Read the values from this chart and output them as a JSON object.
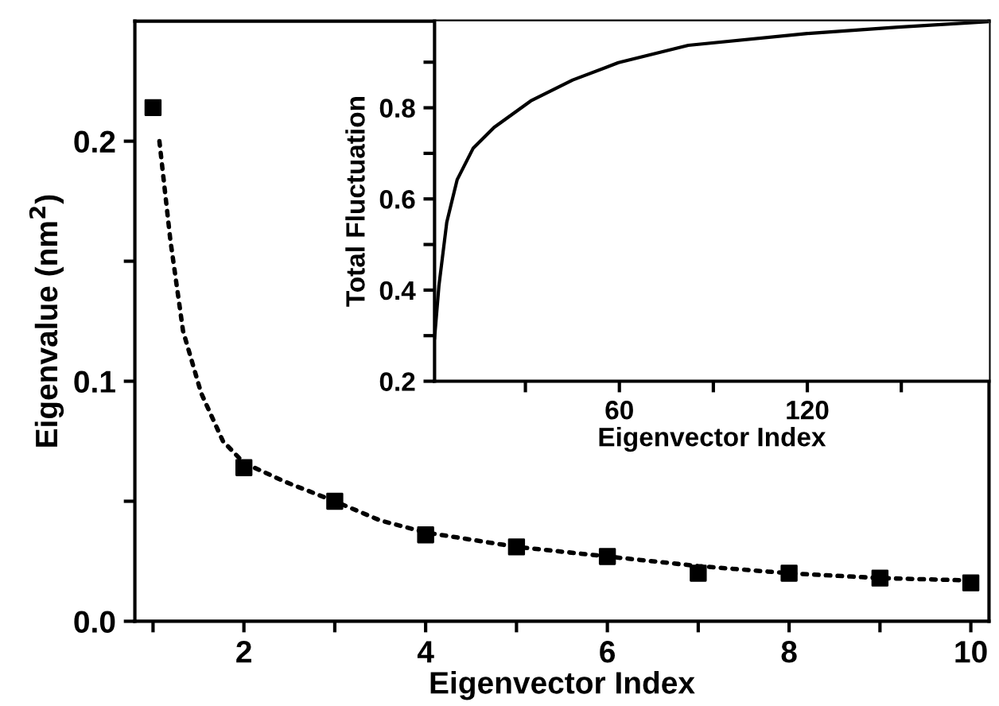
{
  "chart_data": [
    {
      "type": "scatter",
      "xlabel": "Eigenvector Index",
      "ylabel": "Eigenvalue (nm$^{2}$)",
      "marker": "square",
      "grid": false,
      "legend": false,
      "xlim": [
        0.8,
        10.2
      ],
      "ylim": [
        0,
        0.25
      ],
      "xticks": [
        {
          "value": 1,
          "label": null
        },
        2,
        {
          "value": 3,
          "label": null
        },
        4,
        {
          "value": 5,
          "label": null
        },
        6,
        {
          "value": 7,
          "label": null
        },
        8,
        {
          "value": 9,
          "label": null
        },
        10
      ],
      "yticks": [
        {
          "value": 0,
          "label": "0.0"
        },
        {
          "value": 0.05,
          "label": null
        },
        0.1,
        {
          "value": 0.15,
          "label": null
        },
        0.2
      ],
      "series": [
        {
          "type": "scatter",
          "color": "#000000",
          "x": [
            1,
            2,
            3,
            4,
            5,
            6,
            7,
            8,
            9,
            10
          ],
          "values": [
            0.214,
            0.064,
            0.05,
            0.036,
            0.031,
            0.027,
            0.02,
            0.02,
            0.018,
            0.016
          ]
        },
        {
          "type": "line",
          "line_style": "dotted",
          "marker": "none",
          "color": "#000000",
          "x": [
            1.07,
            1.19,
            1.33,
            1.53,
            1.77,
            2,
            2.46,
            3,
            3.5,
            4,
            5,
            6,
            7,
            8,
            9,
            10
          ],
          "values": [
            0.2,
            0.159,
            0.121,
            0.095,
            0.075,
            0.066,
            0.058,
            0.05,
            0.042,
            0.037,
            0.031,
            0.027,
            0.023,
            0.02,
            0.018,
            0.017
          ]
        }
      ]
    },
    {
      "type": "line",
      "xlabel": "Eigenvector Index",
      "ylabel": "Total Fluctuation",
      "grid": false,
      "legend": false,
      "line_style": "solid",
      "xlim": [
        1,
        178
      ],
      "ylim": [
        0.2,
        0.99
      ],
      "xticks": [
        {
          "value": 30,
          "label": null
        },
        60,
        {
          "value": 90,
          "label": null
        },
        120,
        {
          "value": 150,
          "label": null
        }
      ],
      "yticks": [
        0.2,
        {
          "value": 0.3,
          "label": null
        },
        0.4,
        {
          "value": 0.5,
          "label": null
        },
        0.6,
        {
          "value": 0.7,
          "label": null
        },
        0.8,
        {
          "value": 0.9,
          "label": null
        }
      ],
      "series": [
        {
          "color": "#000000",
          "x": [
            1,
            2.4,
            4.9,
            8.2,
            13.3,
            20,
            31.7,
            45.1,
            59.7,
            82,
            120,
            149,
            178
          ],
          "values": [
            0.295,
            0.41,
            0.549,
            0.642,
            0.711,
            0.757,
            0.815,
            0.861,
            0.899,
            0.937,
            0.963,
            0.977,
            0.989
          ]
        }
      ]
    }
  ]
}
